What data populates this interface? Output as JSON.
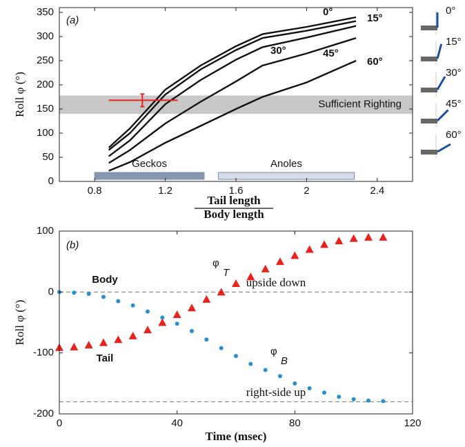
{
  "chart_data": [
    {
      "type": "line",
      "panel": "(a)",
      "y_label": "Roll φ (°)",
      "x_label_numerator": "Tail length",
      "x_label_denominator": "Body length",
      "x": [
        0.88,
        1.0,
        1.2,
        1.4,
        1.6,
        1.75,
        2.0,
        2.28
      ],
      "series": [
        {
          "name": "0°",
          "color": "#111111",
          "values": [
            70,
            110,
            190,
            240,
            280,
            305,
            320,
            340
          ]
        },
        {
          "name": "15°",
          "color": "#111111",
          "values": [
            65,
            100,
            180,
            232,
            272,
            297,
            312,
            332
          ]
        },
        {
          "name": "30°",
          "color": "#111111",
          "values": [
            52,
            85,
            160,
            210,
            252,
            278,
            298,
            322
          ]
        },
        {
          "name": "45°",
          "color": "#111111",
          "values": [
            38,
            65,
            120,
            165,
            207,
            240,
            265,
            297
          ]
        },
        {
          "name": "60°",
          "color": "#111111",
          "values": [
            22,
            40,
            80,
            115,
            150,
            175,
            205,
            250
          ]
        }
      ],
      "xlim": [
        0.6,
        2.6
      ],
      "xticks": [
        0.8,
        1.2,
        1.6,
        2,
        2.4
      ],
      "ylim": [
        0,
        360
      ],
      "yticks": [
        0,
        50,
        100,
        150,
        200,
        250,
        300,
        350
      ],
      "band": {
        "range": [
          140,
          178
        ],
        "label": "Sufficient Righting",
        "color": "#c8c8c8"
      },
      "error_bar": {
        "x": 1.07,
        "y": 168,
        "x_range": [
          0.88,
          1.27
        ],
        "y_range": [
          155,
          181
        ],
        "color": "#e8231e"
      },
      "range_bars": [
        {
          "label": "Geckos",
          "range": [
            0.8,
            1.42
          ],
          "color": "#8797b0"
        },
        {
          "label": "Anoles",
          "range": [
            1.5,
            2.27
          ],
          "color": "#d4dbe9"
        }
      ],
      "insets": [
        {
          "label": "0°"
        },
        {
          "label": "15°"
        },
        {
          "label": "30°"
        },
        {
          "label": "45°"
        },
        {
          "label": "60°"
        }
      ]
    },
    {
      "type": "scatter",
      "panel": "(b)",
      "y_label": "Roll φ (°)",
      "x_label": "Time (msec)",
      "series": [
        {
          "name": "Body",
          "color": "#2a8fd0",
          "marker": "circle",
          "x": [
            0,
            5,
            10,
            15,
            20,
            25,
            30,
            35,
            40,
            45,
            50,
            55,
            60,
            65,
            70,
            75,
            80,
            85,
            90,
            95,
            100,
            105,
            110
          ],
          "values": [
            0,
            -1,
            -3,
            -8,
            -15,
            -22,
            -32,
            -42,
            -52,
            -64,
            -78,
            -92,
            -105,
            -118,
            -128,
            -138,
            -150,
            -158,
            -165,
            -172,
            -176,
            -178,
            -179
          ]
        },
        {
          "name": "Tail",
          "color": "#e8231e",
          "marker": "triangle",
          "x": [
            0,
            5,
            10,
            15,
            20,
            25,
            30,
            35,
            40,
            45,
            50,
            55,
            60,
            65,
            70,
            75,
            80,
            85,
            90,
            95,
            100,
            105,
            110
          ],
          "values": [
            -91,
            -90,
            -87,
            -83,
            -78,
            -72,
            -62,
            -50,
            -37,
            -26,
            -12,
            0,
            14,
            25,
            38,
            50,
            60,
            70,
            78,
            84,
            88,
            90,
            90
          ]
        }
      ],
      "symbols": [
        {
          "text": "φ",
          "sub": "T",
          "color": "#e8231e"
        },
        {
          "text": "φ",
          "sub": "B",
          "color": "#2aa9d8"
        }
      ],
      "reference_lines": [
        {
          "value": 0,
          "label": "upside down"
        },
        {
          "value": -180,
          "label": "right-side up"
        }
      ],
      "xlim": [
        0,
        120
      ],
      "xticks": [
        0,
        40,
        80,
        120
      ],
      "ylim": [
        -200,
        100
      ],
      "yticks": [
        -200,
        -100,
        0,
        100
      ]
    }
  ]
}
